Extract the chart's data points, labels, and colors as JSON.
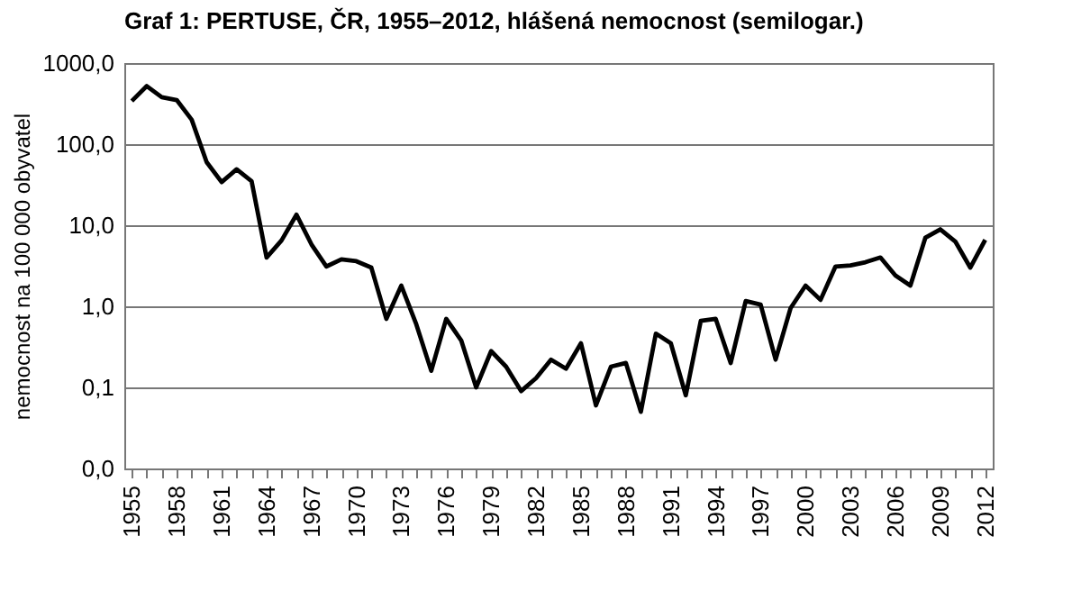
{
  "chart_data": {
    "type": "line",
    "title": "Graf 1: PERTUSE, ČR, 1955–2012, hlášená nemocnost (semilogar.)",
    "ylabel": "nemocnost na 100 000 obyvatel",
    "x": [
      1955,
      1956,
      1957,
      1958,
      1959,
      1960,
      1961,
      1962,
      1963,
      1964,
      1965,
      1966,
      1967,
      1968,
      1969,
      1970,
      1971,
      1972,
      1973,
      1974,
      1975,
      1976,
      1977,
      1978,
      1979,
      1980,
      1981,
      1982,
      1983,
      1984,
      1985,
      1986,
      1987,
      1988,
      1989,
      1990,
      1991,
      1992,
      1993,
      1994,
      1995,
      1996,
      1997,
      1998,
      1999,
      2000,
      2001,
      2002,
      2003,
      2004,
      2005,
      2006,
      2007,
      2008,
      2009,
      2010,
      2011,
      2012
    ],
    "series": [
      {
        "color": "#000000",
        "values": [
          340,
          520,
          380,
          350,
          200,
          60,
          34,
          49,
          35,
          4,
          6.5,
          13.5,
          5.8,
          3.1,
          3.8,
          3.6,
          3.0,
          0.7,
          1.8,
          0.6,
          0.16,
          0.7,
          0.38,
          0.1,
          0.28,
          0.18,
          0.09,
          0.13,
          0.22,
          0.17,
          0.35,
          0.06,
          0.18,
          0.2,
          0.05,
          0.46,
          0.35,
          0.08,
          0.66,
          0.7,
          0.2,
          1.16,
          1.05,
          0.22,
          0.95,
          1.8,
          1.2,
          3.1,
          3.2,
          3.5,
          4,
          2.4,
          1.8,
          7,
          8.9,
          6.3,
          3.0,
          6.6
        ]
      }
    ],
    "log": "y",
    "ylim": [
      0.01,
      1000
    ],
    "yticks": [
      {
        "value": 0.01,
        "label": "0,0"
      },
      {
        "value": 0.1,
        "label": "0,1"
      },
      {
        "value": 1,
        "label": "1,0"
      },
      {
        "value": 10,
        "label": "10,0"
      },
      {
        "value": 100,
        "label": "100,0"
      },
      {
        "value": 1000,
        "label": "1000,0"
      }
    ],
    "xlim": [
      1954.5,
      2012.5
    ],
    "xticks": [
      1955,
      {
        "value": 1956,
        "label": null
      },
      {
        "value": 1957,
        "label": null
      },
      1958,
      {
        "value": 1959,
        "label": null
      },
      {
        "value": 1960,
        "label": null
      },
      1961,
      {
        "value": 1962,
        "label": null
      },
      {
        "value": 1963,
        "label": null
      },
      1964,
      {
        "value": 1965,
        "label": null
      },
      {
        "value": 1966,
        "label": null
      },
      1967,
      {
        "value": 1968,
        "label": null
      },
      {
        "value": 1969,
        "label": null
      },
      1970,
      {
        "value": 1971,
        "label": null
      },
      {
        "value": 1972,
        "label": null
      },
      1973,
      {
        "value": 1974,
        "label": null
      },
      {
        "value": 1975,
        "label": null
      },
      1976,
      {
        "value": 1977,
        "label": null
      },
      {
        "value": 1978,
        "label": null
      },
      1979,
      {
        "value": 1980,
        "label": null
      },
      {
        "value": 1981,
        "label": null
      },
      1982,
      {
        "value": 1983,
        "label": null
      },
      {
        "value": 1984,
        "label": null
      },
      1985,
      {
        "value": 1986,
        "label": null
      },
      {
        "value": 1987,
        "label": null
      },
      1988,
      {
        "value": 1989,
        "label": null
      },
      {
        "value": 1990,
        "label": null
      },
      1991,
      {
        "value": 1992,
        "label": null
      },
      {
        "value": 1993,
        "label": null
      },
      1994,
      {
        "value": 1995,
        "label": null
      },
      {
        "value": 1996,
        "label": null
      },
      1997,
      {
        "value": 1998,
        "label": null
      },
      {
        "value": 1999,
        "label": null
      },
      2000,
      {
        "value": 2001,
        "label": null
      },
      {
        "value": 2002,
        "label": null
      },
      2003,
      {
        "value": 2004,
        "label": null
      },
      {
        "value": 2005,
        "label": null
      },
      2006,
      {
        "value": 2007,
        "label": null
      },
      {
        "value": 2008,
        "label": null
      },
      2009,
      {
        "value": 2010,
        "label": null
      },
      {
        "value": 2011,
        "label": null
      },
      2012
    ],
    "grid": "y",
    "line_style": "solid"
  }
}
